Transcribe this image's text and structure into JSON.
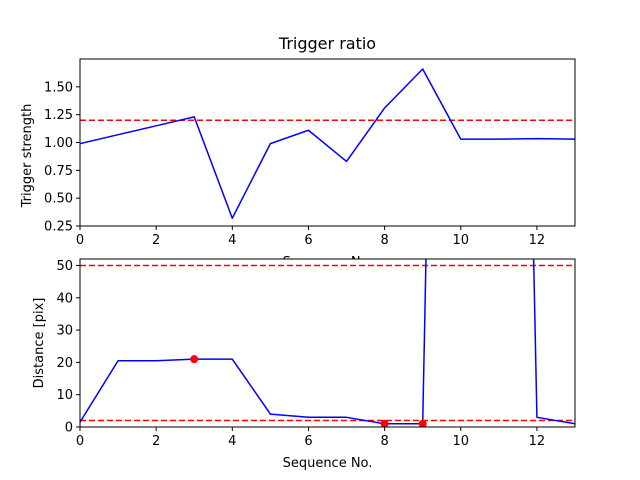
{
  "chart_data": [
    {
      "type": "line",
      "title": "Trigger ratio",
      "xlabel": "Sequence No.",
      "ylabel": "Trigger strength",
      "xlim": [
        0,
        13
      ],
      "ylim": [
        0.25,
        1.75
      ],
      "xticks": [
        0,
        2,
        4,
        6,
        8,
        10,
        12
      ],
      "yticks": [
        0.25,
        0.5,
        0.75,
        1.0,
        1.25,
        1.5
      ],
      "ytick_labels": [
        "0.25",
        "0.50",
        "0.75",
        "1.00",
        "1.25",
        "1.50"
      ],
      "series": [
        {
          "color": "#0000ff",
          "x": [
            0,
            1,
            2,
            3,
            4,
            5,
            6,
            7,
            8,
            9,
            10,
            11,
            12,
            13
          ],
          "y": [
            0.99,
            1.07,
            1.15,
            1.23,
            0.32,
            0.99,
            1.11,
            0.83,
            1.31,
            1.66,
            1.03,
            1.03,
            1.035,
            1.03
          ]
        }
      ],
      "hlines": [
        {
          "y": 1.2,
          "color": "#ff0000",
          "style": "dashed"
        }
      ],
      "markers": []
    },
    {
      "type": "line",
      "title": "",
      "xlabel": "Sequence No.",
      "ylabel": "Distance [pix]",
      "xlim": [
        0,
        13
      ],
      "ylim": [
        0,
        52
      ],
      "xticks": [
        0,
        2,
        4,
        6,
        8,
        10,
        12
      ],
      "yticks": [
        0,
        10,
        20,
        30,
        40,
        50
      ],
      "ytick_labels": [
        "0",
        "10",
        "20",
        "30",
        "40",
        "50"
      ],
      "series": [
        {
          "color": "#0000ff",
          "x": [
            0,
            1,
            2,
            3,
            4,
            5,
            6,
            7,
            8,
            9,
            9.1,
            11.9,
            12,
            13
          ],
          "y": [
            1.5,
            20.5,
            20.5,
            21,
            21,
            4,
            3,
            3,
            1,
            1,
            60,
            60,
            3,
            1
          ]
        }
      ],
      "hlines": [
        {
          "y": 50,
          "color": "#ff0000",
          "style": "dashed"
        },
        {
          "y": 2,
          "color": "#ff0000",
          "style": "dashed"
        }
      ],
      "markers": [
        {
          "x": 3,
          "y": 21,
          "color": "#ff0000"
        },
        {
          "x": 8,
          "y": 1,
          "color": "#ff0000"
        },
        {
          "x": 9,
          "y": 1,
          "color": "#ff0000"
        }
      ]
    }
  ]
}
